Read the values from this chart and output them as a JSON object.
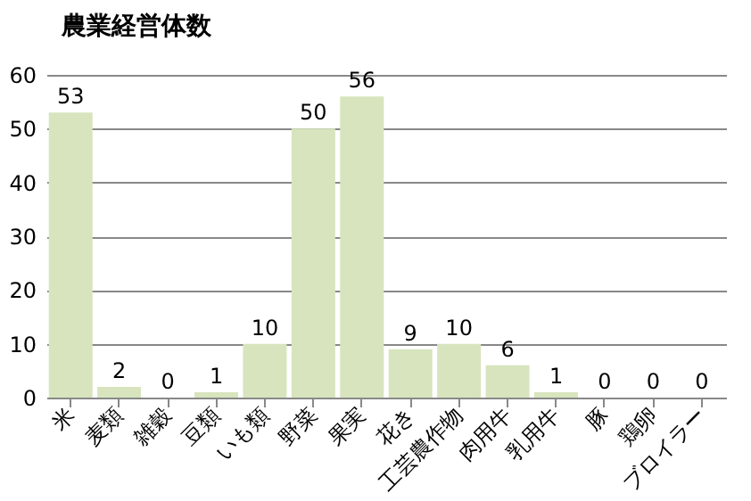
{
  "chart_data": {
    "type": "bar",
    "title": "農業経営体数",
    "categories": [
      "米",
      "麦類",
      "雑穀",
      "豆類",
      "いも類",
      "野菜",
      "果実",
      "花き",
      "工芸農作物",
      "肉用牛",
      "乳用牛",
      "豚",
      "鶏卵",
      "ブロイラー"
    ],
    "values": [
      53,
      2,
      0,
      1,
      10,
      50,
      56,
      9,
      10,
      6,
      1,
      0,
      0,
      0
    ],
    "color": "#d7e4bd",
    "ylim": [
      0,
      60
    ],
    "yticks": [
      0,
      10,
      20,
      30,
      40,
      50,
      60
    ],
    "grid": "y",
    "data_labels": true
  }
}
